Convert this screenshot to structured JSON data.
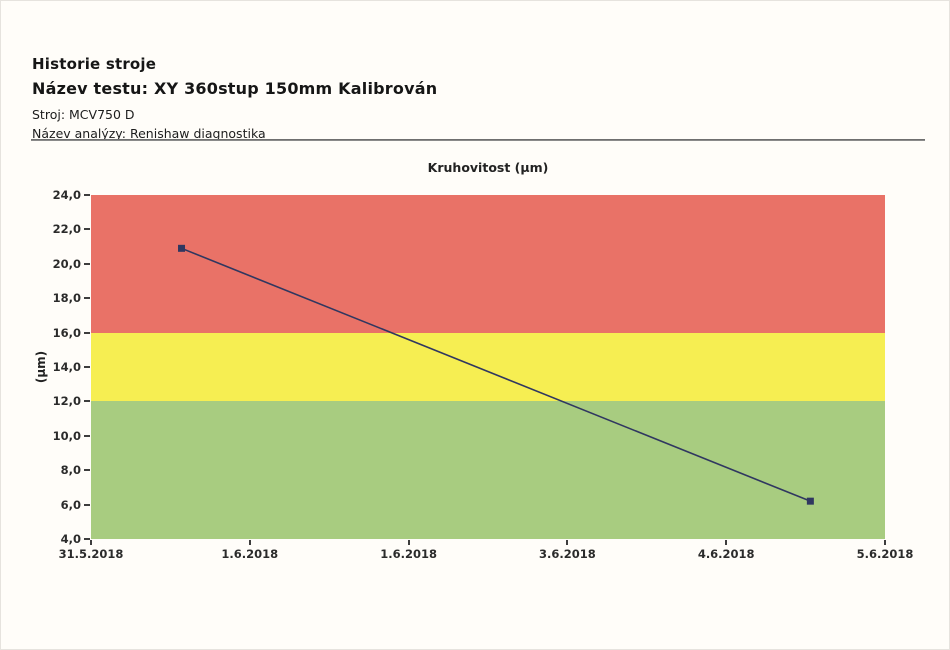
{
  "header": {
    "title": "Historie stroje",
    "test_name_line": "Název testu: XY 360stup 150mm Kalibrován",
    "machine_line": "Stroj: MCV750 D",
    "analysis_line": "Název analýzy: Renishaw diagnostika"
  },
  "chart_data": {
    "type": "line",
    "title": "Kruhovitost (µm)",
    "ylabel": "(µm)",
    "xlabel": "",
    "ylim": [
      4,
      24
    ],
    "y_tick_step": 2,
    "grid": false,
    "legend_position": "none",
    "y_ticks": [
      {
        "label": "24,0",
        "value": 24
      },
      {
        "label": "22,0",
        "value": 22
      },
      {
        "label": "20,0",
        "value": 20
      },
      {
        "label": "18,0",
        "value": 18
      },
      {
        "label": "16,0",
        "value": 16
      },
      {
        "label": "14,0",
        "value": 14
      },
      {
        "label": "12,0",
        "value": 12
      },
      {
        "label": "10,0",
        "value": 10
      },
      {
        "label": "8,0",
        "value": 8
      },
      {
        "label": "6,0",
        "value": 6
      },
      {
        "label": "4,0",
        "value": 4
      }
    ],
    "x_range_days": [
      0,
      5
    ],
    "x_ticks": [
      {
        "label": "31.5.2018",
        "pos": 0
      },
      {
        "label": "1.6.2018",
        "pos": 1
      },
      {
        "label": "1.6.2018",
        "pos": 2
      },
      {
        "label": "3.6.2018",
        "pos": 3
      },
      {
        "label": "4.6.2018",
        "pos": 4
      },
      {
        "label": "5.6.2018",
        "pos": 5
      }
    ],
    "bands": [
      {
        "name": "fail",
        "from": 16,
        "to": 24,
        "color": "#e97267"
      },
      {
        "name": "warning",
        "from": 12,
        "to": 16,
        "color": "#f6ee52"
      },
      {
        "name": "pass",
        "from": 4,
        "to": 12,
        "color": "#a8cc80"
      }
    ],
    "series": [
      {
        "name": "Kruhovitost",
        "color": "#303760",
        "points": [
          {
            "x": 0.57,
            "y": 20.9
          },
          {
            "x": 4.53,
            "y": 6.2
          }
        ]
      }
    ]
  }
}
